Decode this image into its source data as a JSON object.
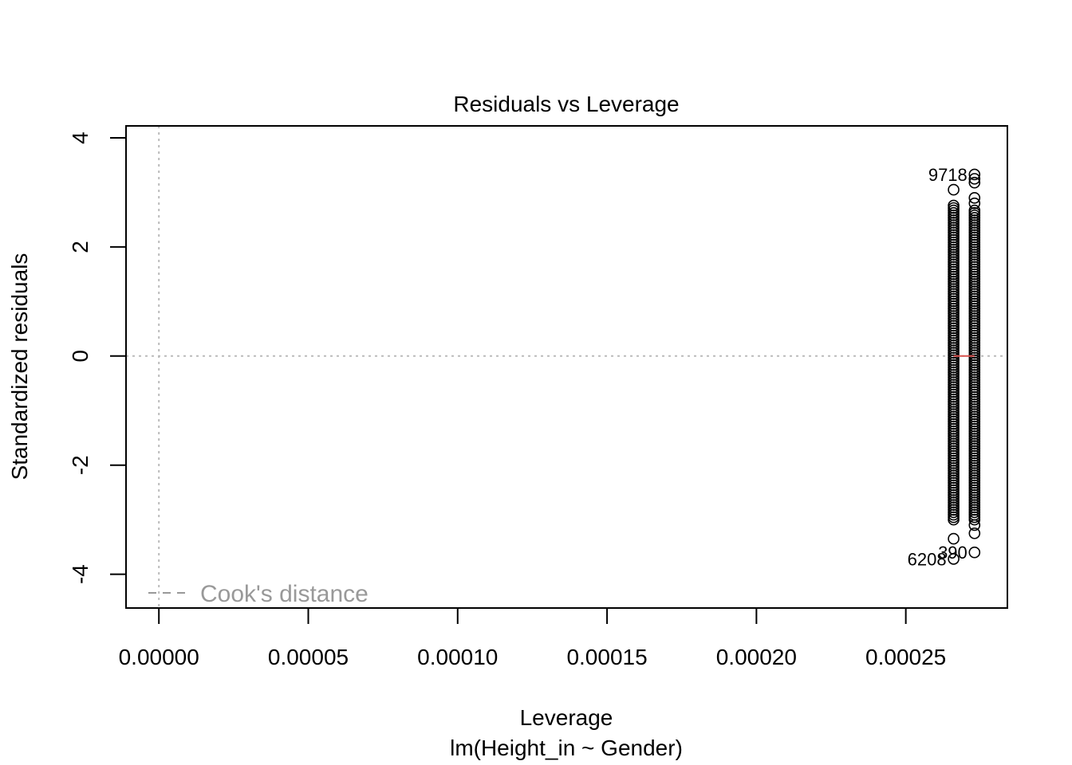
{
  "chart_data": {
    "type": "scatter",
    "title": "Residuals vs Leverage",
    "xlabel": "Leverage",
    "subtitle": "lm(Height_in ~ Gender)",
    "ylabel": "Standardized residuals",
    "xlim": [
      -1.1e-05,
      0.000284
    ],
    "ylim": [
      -4.62,
      4.22
    ],
    "x_ticks": [
      0,
      5e-05,
      0.0001,
      0.00015,
      0.0002,
      0.00025
    ],
    "x_tick_labels": [
      "0.00000",
      "0.00005",
      "0.00010",
      "0.00015",
      "0.00020",
      "0.00025"
    ],
    "y_ticks": [
      -4,
      -2,
      0,
      2,
      4
    ],
    "y_tick_labels": [
      "-4",
      "-2",
      "0",
      "2",
      "4"
    ],
    "reference_lines": {
      "vertical_x": 0,
      "horizontal_y": 0,
      "style": "dotted",
      "color": "#bbbbbb"
    },
    "grid": false,
    "legend": {
      "position": "bottom-left",
      "entries": [
        {
          "label": "Cook's distance",
          "style": "dashed",
          "color": "#999999"
        }
      ]
    },
    "series": [
      {
        "group_leverage": 0.000266,
        "range": [
          -3.0,
          2.8
        ],
        "extra_points": [
          3.05,
          -3.35,
          -3.72
        ],
        "smoother_color": "#d9534f"
      },
      {
        "group_leverage": 0.000273,
        "range": [
          -3.0,
          2.7
        ],
        "extra_points": [
          3.33,
          3.25,
          3.18,
          2.9,
          2.8,
          -3.1,
          -3.25,
          -3.6
        ]
      }
    ],
    "annotations": [
      {
        "label": "9718",
        "x": 0.000273,
        "y": 3.33
      },
      {
        "label": "390",
        "x": 0.000273,
        "y": -3.6
      },
      {
        "label": "6208",
        "x": 0.000266,
        "y": -3.72
      }
    ],
    "colors": {
      "points": "#000000",
      "smoother": "#d9534f",
      "reference": "#bbbbbb",
      "legend": "#999999"
    }
  }
}
